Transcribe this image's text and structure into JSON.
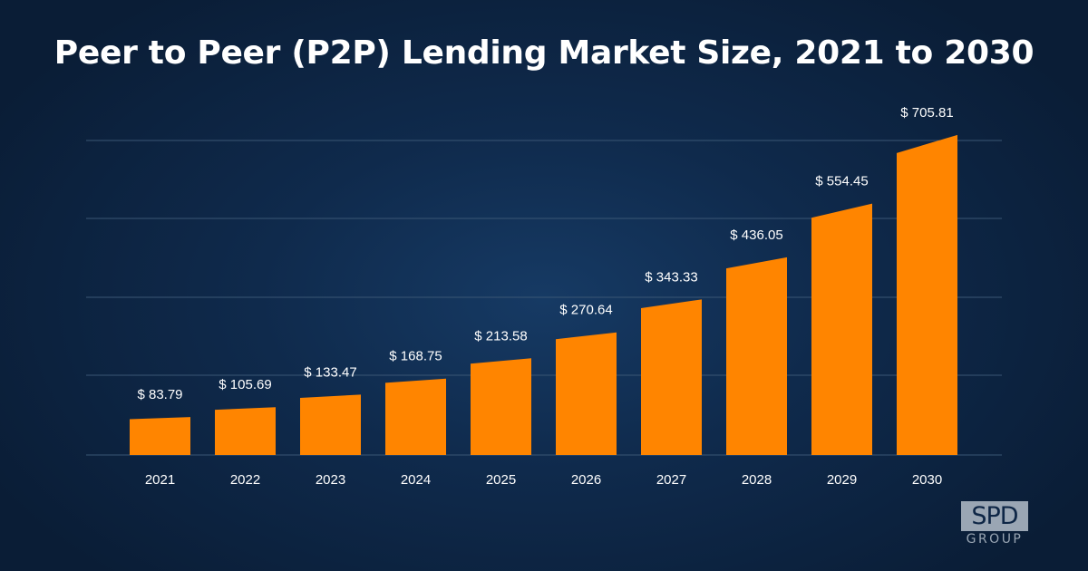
{
  "chart_data": {
    "type": "bar",
    "title": "Peer to Peer (P2P) Lending Market Size, 2021 to 2030",
    "categories": [
      "2021",
      "2022",
      "2023",
      "2024",
      "2025",
      "2026",
      "2027",
      "2028",
      "2029",
      "2030"
    ],
    "values": [
      83.79,
      105.69,
      133.47,
      168.75,
      213.58,
      270.64,
      343.33,
      436.05,
      554.45,
      705.81
    ],
    "data_labels": [
      "$ 83.79",
      "$ 105.69",
      "$ 133.47",
      "$ 168.75",
      "$ 213.58",
      "$ 270.64",
      "$ 343.33",
      "$ 436.05",
      "$ 554.45",
      "$ 705.81"
    ],
    "xlabel": "",
    "ylabel": "",
    "grid": true,
    "legend": "none",
    "bar_color": "#ff8500",
    "grid_color": "#3a5674"
  },
  "logo": {
    "main": "SPD",
    "sub": "GROUP"
  }
}
